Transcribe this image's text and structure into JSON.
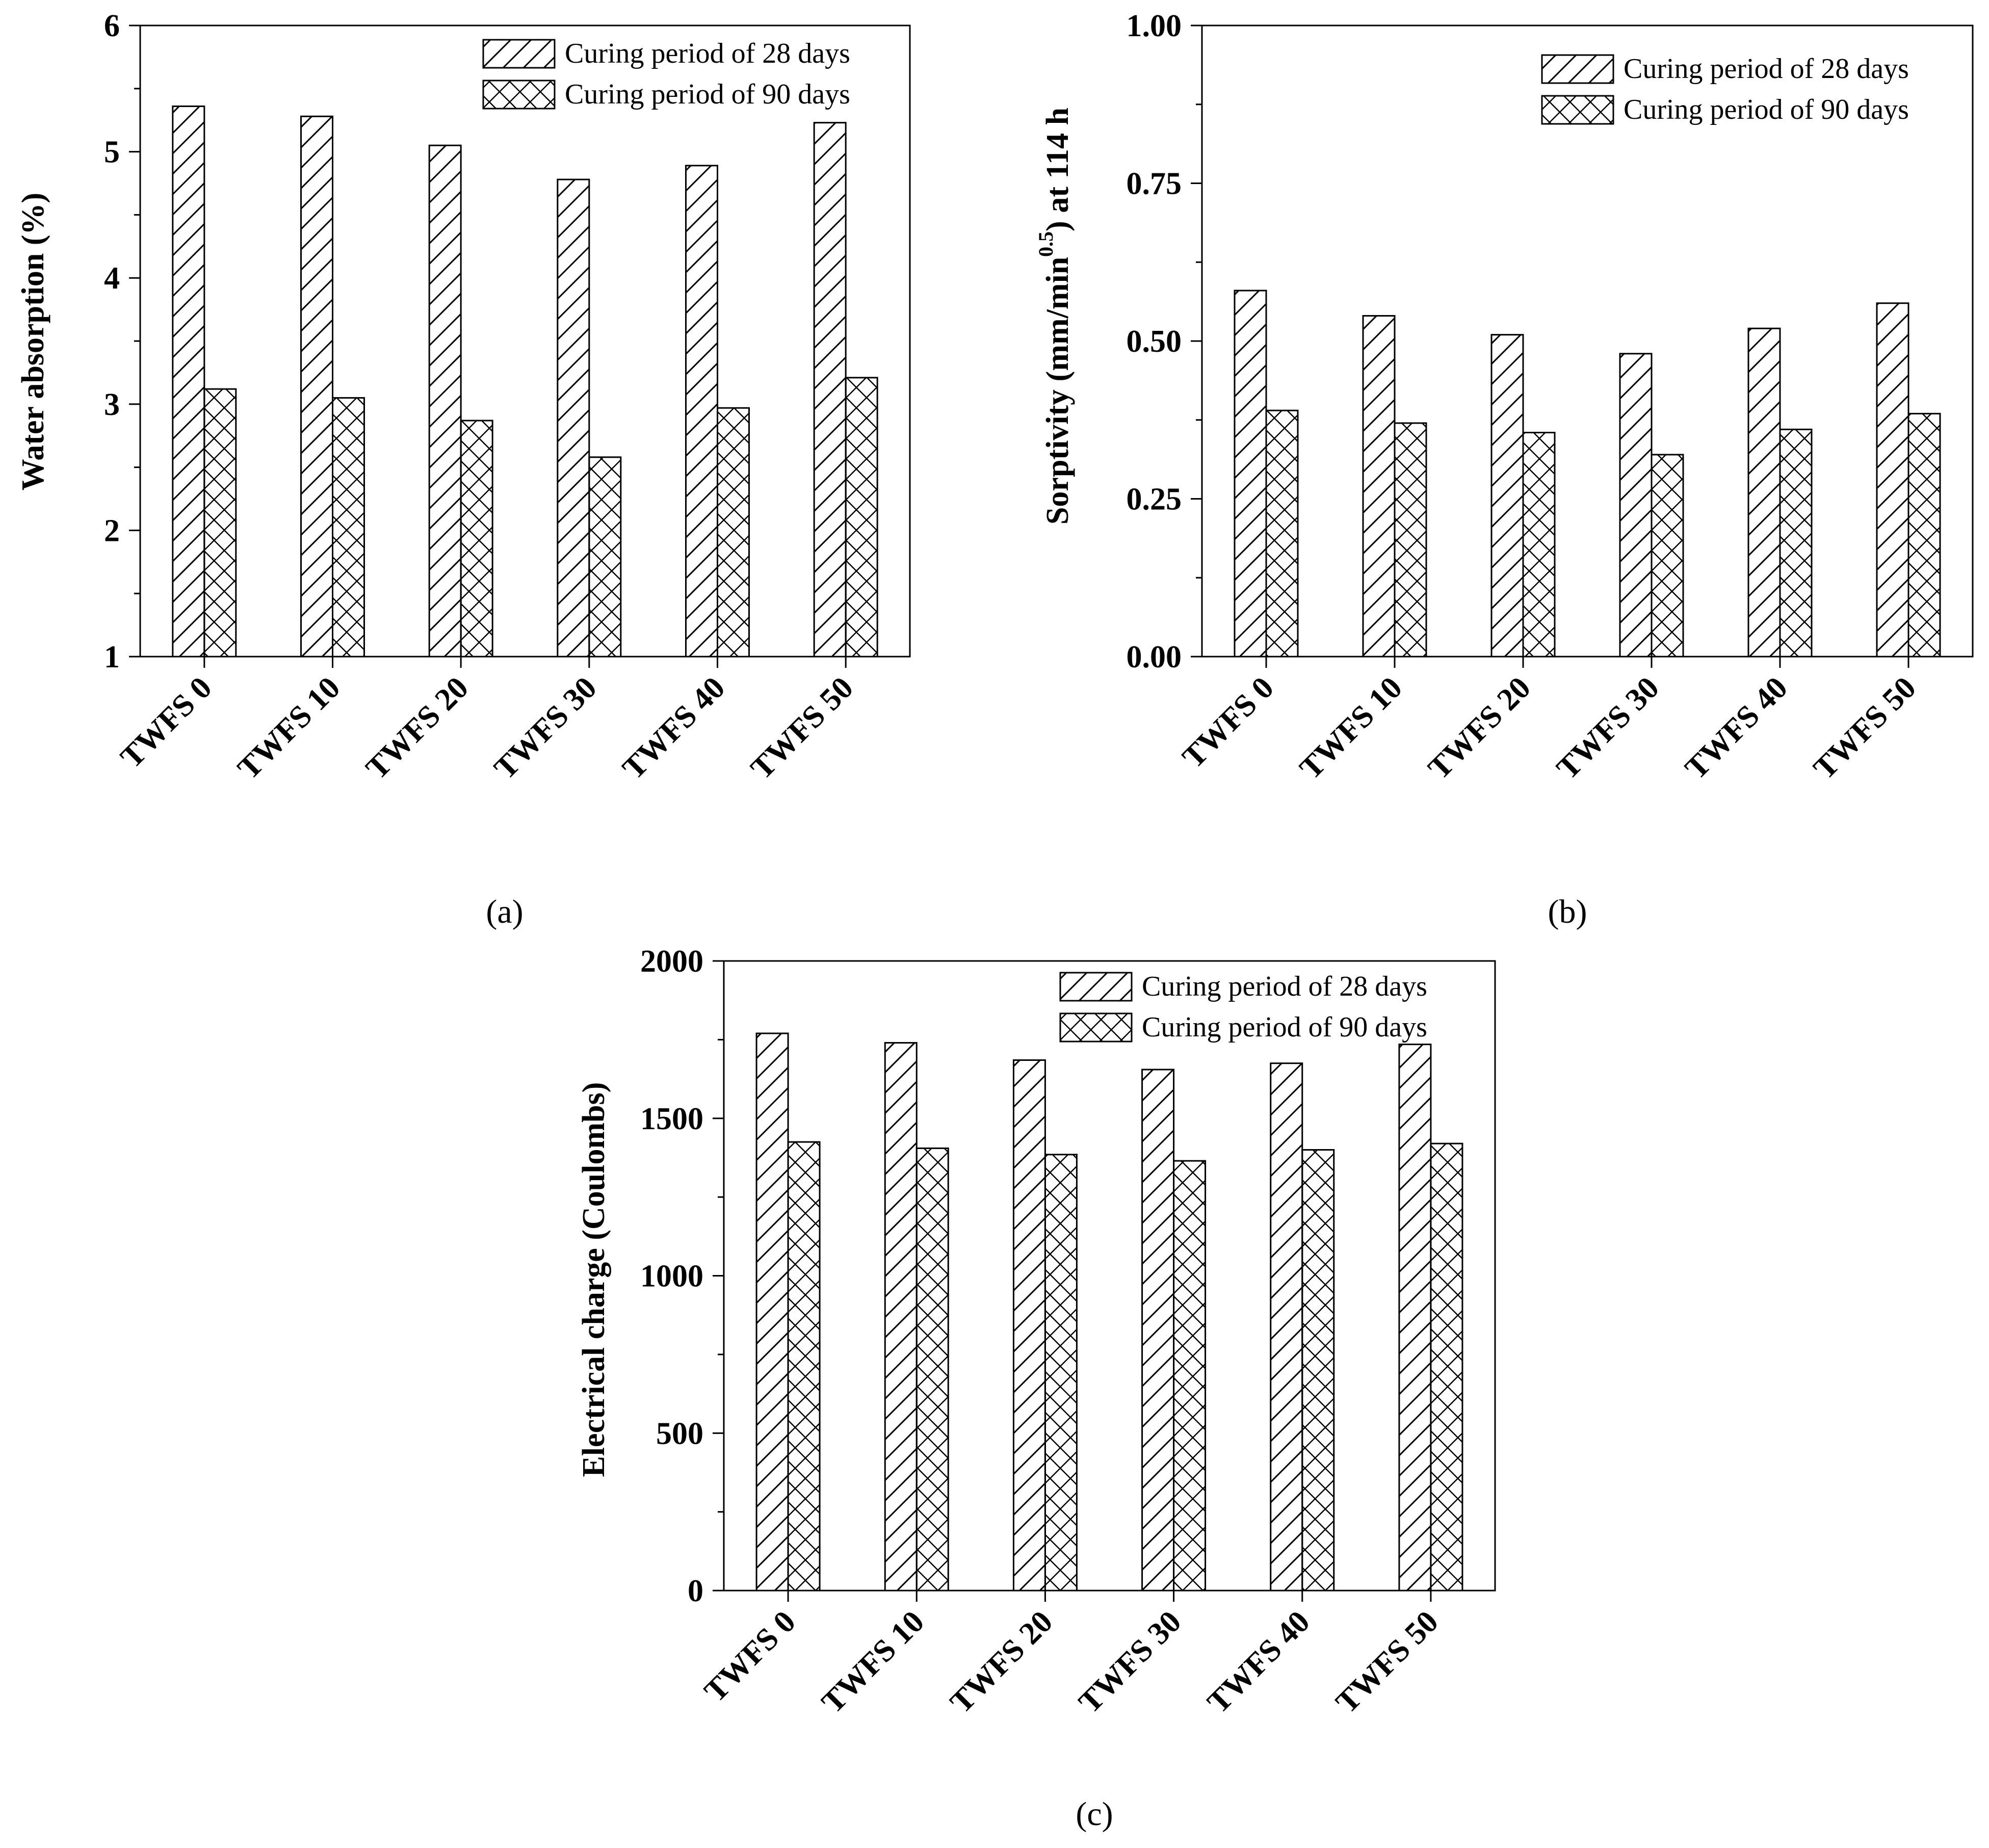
{
  "figure": {
    "panels": [
      {
        "label": "(a)"
      },
      {
        "label": "(b)"
      },
      {
        "label": "(c)"
      }
    ]
  },
  "chart_data": [
    {
      "type": "bar",
      "panel": "(a)",
      "title": "",
      "xlabel": "",
      "ylabel": "Water absorption (%)",
      "categories": [
        "TWFS 0",
        "TWFS 10",
        "TWFS 20",
        "TWFS 30",
        "TWFS 40",
        "TWFS 50"
      ],
      "ylim": [
        1,
        6
      ],
      "yticks": [
        1,
        2,
        3,
        4,
        5,
        6
      ],
      "ytick_labels": [
        "1",
        "2",
        "3",
        "4",
        "5",
        "6"
      ],
      "legend_position": "top-right",
      "series": [
        {
          "name": "Curing period of 28 days",
          "pattern": "diagonal-hatch",
          "values": [
            5.36,
            5.28,
            5.05,
            4.78,
            4.89,
            5.23
          ]
        },
        {
          "name": "Curing period of 90 days",
          "pattern": "cross-hatch",
          "values": [
            3.12,
            3.05,
            2.87,
            2.58,
            2.97,
            3.21
          ]
        }
      ]
    },
    {
      "type": "bar",
      "panel": "(b)",
      "title": "",
      "xlabel": "",
      "ylabel_parts": {
        "main": "Sorptivity (mm/min",
        "superscript": "0.5",
        "rest": ") at 114 h"
      },
      "categories": [
        "TWFS 0",
        "TWFS 10",
        "TWFS 20",
        "TWFS 30",
        "TWFS 40",
        "TWFS 50"
      ],
      "ylim": [
        0,
        1
      ],
      "yticks": [
        0,
        0.25,
        0.5,
        0.75,
        1.0
      ],
      "ytick_labels": [
        "0.00",
        "0.25",
        "0.50",
        "0.75",
        "1.00"
      ],
      "legend_position": "top-right",
      "series": [
        {
          "name": "Curing period of 28 days",
          "pattern": "diagonal-hatch",
          "values": [
            0.58,
            0.54,
            0.51,
            0.48,
            0.52,
            0.56
          ]
        },
        {
          "name": "Curing period of 90 days",
          "pattern": "cross-hatch",
          "values": [
            0.39,
            0.37,
            0.355,
            0.32,
            0.36,
            0.385
          ]
        }
      ]
    },
    {
      "type": "bar",
      "panel": "(c)",
      "title": "",
      "xlabel": "",
      "ylabel": "Electrical charge (Coulombs)",
      "categories": [
        "TWFS 0",
        "TWFS 10",
        "TWFS 20",
        "TWFS 30",
        "TWFS 40",
        "TWFS 50"
      ],
      "ylim": [
        0,
        2000
      ],
      "yticks": [
        0,
        500,
        1000,
        1500,
        2000
      ],
      "ytick_labels": [
        "0",
        "500",
        "1000",
        "1500",
        "2000"
      ],
      "legend_position": "top-right",
      "series": [
        {
          "name": "Curing period of 28 days",
          "pattern": "diagonal-hatch",
          "values": [
            1770,
            1740,
            1685,
            1655,
            1675,
            1735
          ]
        },
        {
          "name": "Curing period of 90 days",
          "pattern": "cross-hatch",
          "values": [
            1425,
            1405,
            1385,
            1365,
            1400,
            1420
          ]
        }
      ]
    }
  ]
}
